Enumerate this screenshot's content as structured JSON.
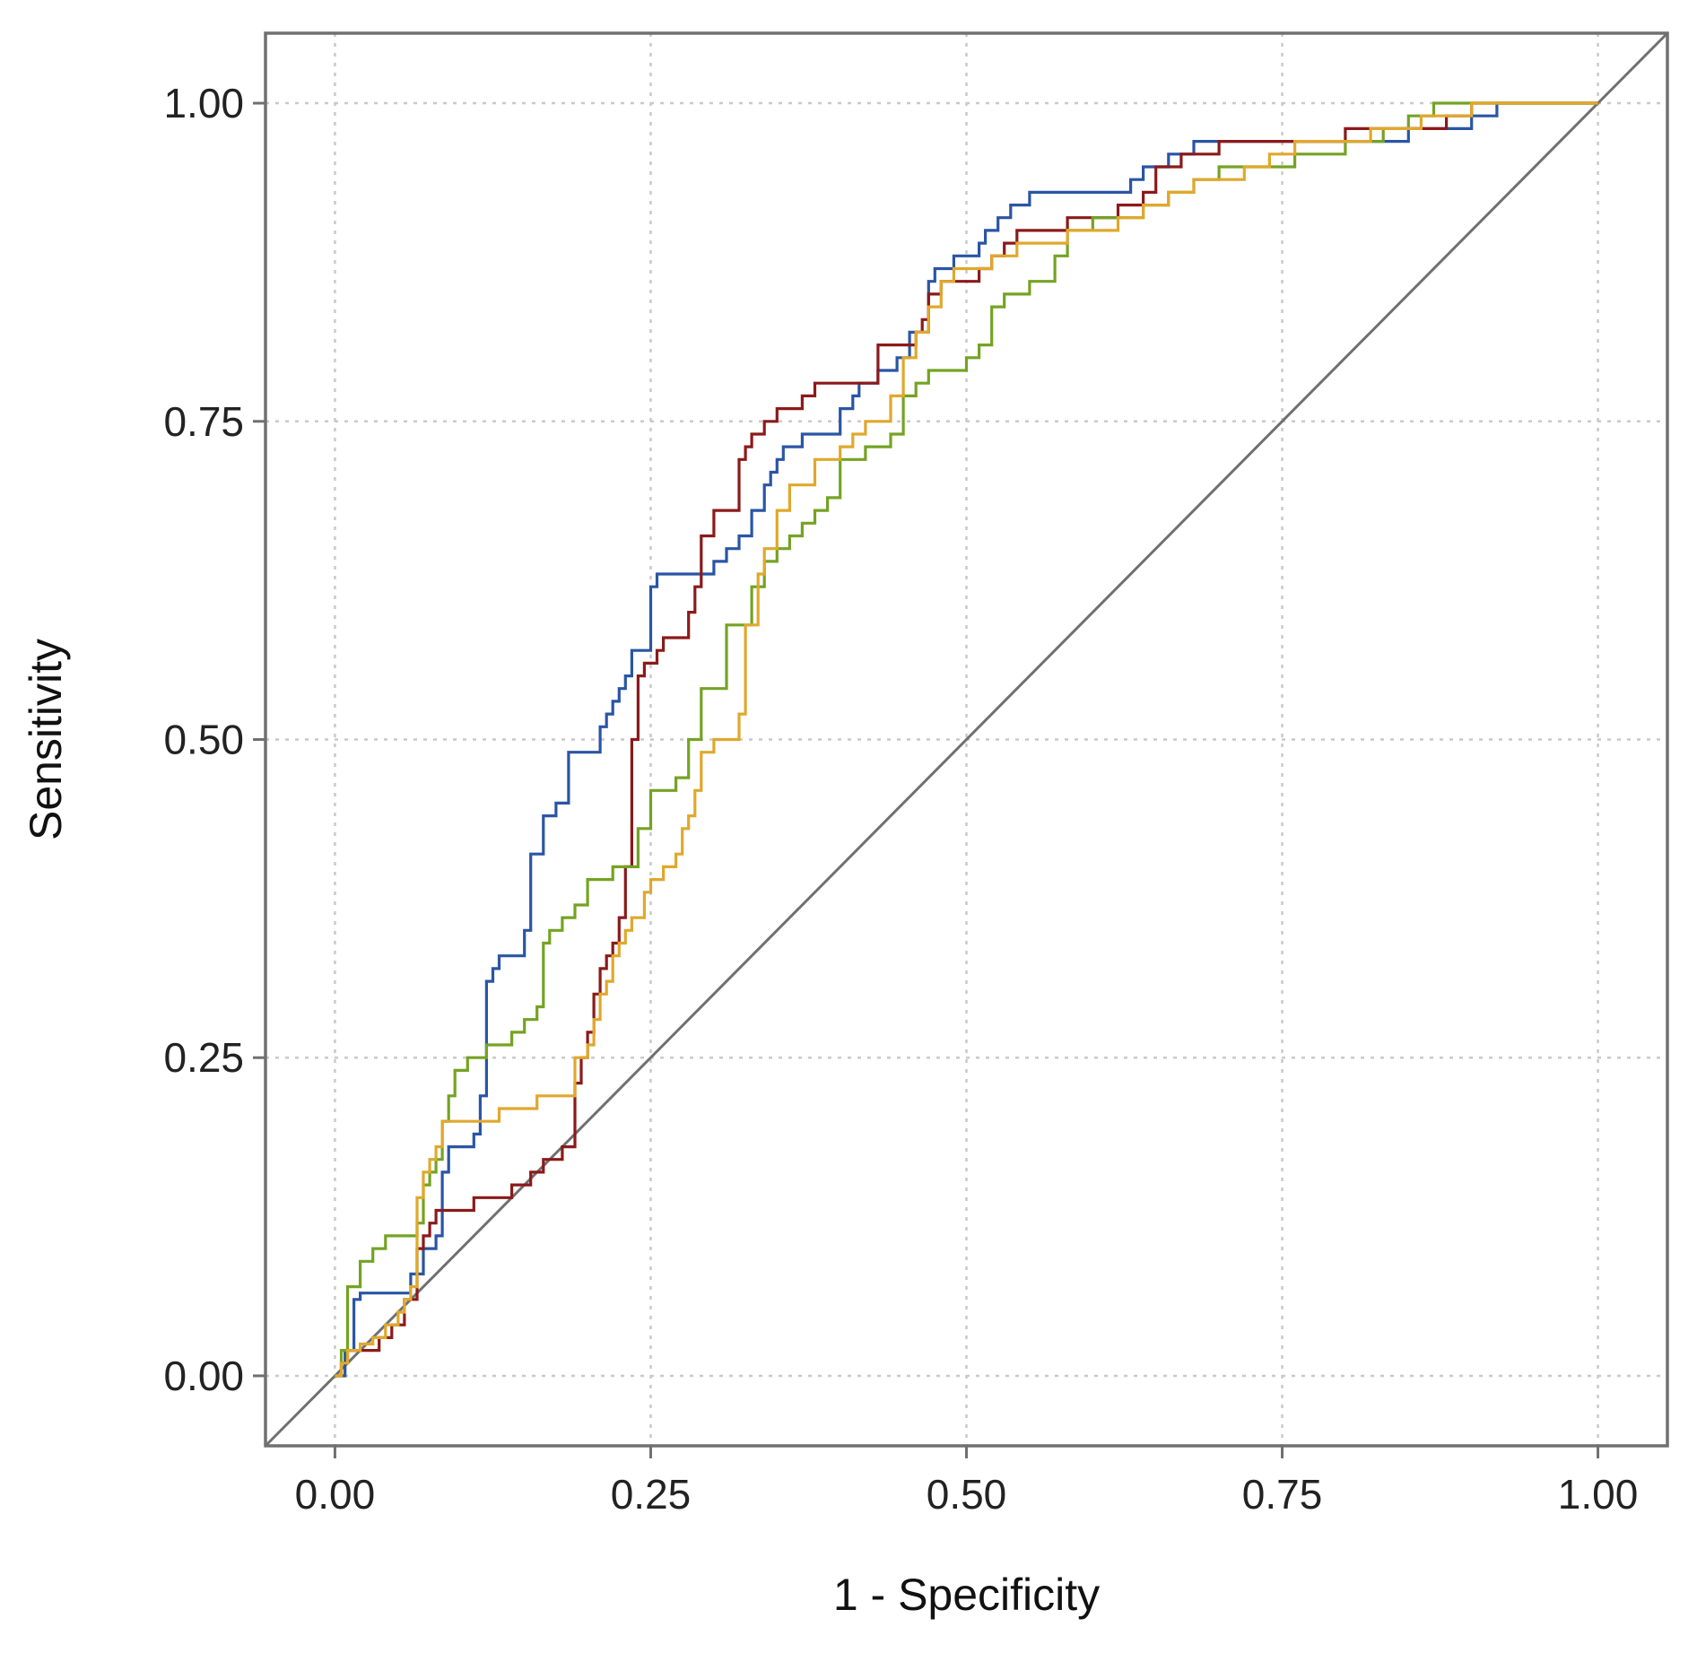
{
  "chart_data": {
    "type": "line",
    "title": "",
    "xlabel": "1 - Specificity",
    "ylabel": "Sensitivity",
    "xlim": [
      -0.055,
      1.055
    ],
    "ylim": [
      -0.055,
      1.055
    ],
    "x_ticks": [
      0,
      0.25,
      0.5,
      0.75,
      1
    ],
    "y_ticks": [
      0,
      0.25,
      0.5,
      0.75,
      1
    ],
    "x_tick_labels": [
      "0.00",
      "0.25",
      "0.50",
      "0.75",
      "1.00"
    ],
    "y_tick_labels": [
      "0.00",
      "0.25",
      "0.50",
      "0.75",
      "1.00"
    ],
    "grid": true,
    "reference_line": {
      "x": [
        -0.055,
        1.055
      ],
      "y": [
        -0.055,
        1.055
      ],
      "color": "#707070"
    },
    "series": [
      {
        "name": "blue",
        "color": "#2a55a5",
        "x": [
          0,
          0.008,
          0.015,
          0.02,
          0.03,
          0.045,
          0.055,
          0.06,
          0.065,
          0.07,
          0.08,
          0.085,
          0.09,
          0.1,
          0.11,
          0.115,
          0.12,
          0.125,
          0.13,
          0.135,
          0.14,
          0.15,
          0.155,
          0.16,
          0.165,
          0.17,
          0.175,
          0.18,
          0.185,
          0.19,
          0.2,
          0.205,
          0.21,
          0.215,
          0.22,
          0.225,
          0.23,
          0.235,
          0.24,
          0.245,
          0.25,
          0.255,
          0.27,
          0.29,
          0.3,
          0.31,
          0.315,
          0.32,
          0.33,
          0.335,
          0.34,
          0.345,
          0.35,
          0.355,
          0.36,
          0.37,
          0.38,
          0.39,
          0.4,
          0.41,
          0.415,
          0.42,
          0.43,
          0.44,
          0.445,
          0.45,
          0.455,
          0.46,
          0.465,
          0.47,
          0.475,
          0.48,
          0.49,
          0.5,
          0.51,
          0.515,
          0.52,
          0.525,
          0.53,
          0.535,
          0.54,
          0.55,
          0.56,
          0.57,
          0.58,
          0.6,
          0.62,
          0.63,
          0.64,
          0.65,
          0.66,
          0.67,
          0.68,
          0.7,
          0.72,
          0.74,
          0.76,
          0.8,
          0.85,
          0.9,
          0.92,
          0.95,
          1.0
        ],
        "y": [
          0,
          0.02,
          0.06,
          0.065,
          0.065,
          0.065,
          0.065,
          0.08,
          0.08,
          0.1,
          0.11,
          0.16,
          0.18,
          0.18,
          0.19,
          0.22,
          0.31,
          0.32,
          0.33,
          0.33,
          0.33,
          0.35,
          0.41,
          0.41,
          0.44,
          0.44,
          0.45,
          0.45,
          0.49,
          0.49,
          0.49,
          0.49,
          0.51,
          0.52,
          0.53,
          0.54,
          0.55,
          0.57,
          0.57,
          0.57,
          0.62,
          0.63,
          0.63,
          0.63,
          0.64,
          0.65,
          0.65,
          0.66,
          0.68,
          0.68,
          0.7,
          0.71,
          0.72,
          0.73,
          0.73,
          0.74,
          0.74,
          0.74,
          0.76,
          0.77,
          0.78,
          0.78,
          0.79,
          0.79,
          0.8,
          0.8,
          0.82,
          0.82,
          0.82,
          0.86,
          0.87,
          0.87,
          0.88,
          0.88,
          0.89,
          0.9,
          0.9,
          0.91,
          0.91,
          0.92,
          0.92,
          0.93,
          0.93,
          0.93,
          0.93,
          0.93,
          0.93,
          0.94,
          0.95,
          0.95,
          0.96,
          0.96,
          0.97,
          0.97,
          0.97,
          0.97,
          0.97,
          0.97,
          0.98,
          0.99,
          1.0,
          1.0,
          1.0
        ]
      },
      {
        "name": "dark-red",
        "color": "#8b1a1a",
        "x": [
          0,
          0.005,
          0.01,
          0.02,
          0.035,
          0.045,
          0.055,
          0.065,
          0.07,
          0.075,
          0.08,
          0.085,
          0.09,
          0.11,
          0.12,
          0.13,
          0.14,
          0.145,
          0.155,
          0.165,
          0.175,
          0.18,
          0.19,
          0.195,
          0.2,
          0.205,
          0.21,
          0.215,
          0.22,
          0.225,
          0.23,
          0.235,
          0.24,
          0.245,
          0.25,
          0.255,
          0.26,
          0.27,
          0.28,
          0.285,
          0.29,
          0.3,
          0.31,
          0.32,
          0.325,
          0.33,
          0.335,
          0.34,
          0.345,
          0.35,
          0.36,
          0.37,
          0.38,
          0.39,
          0.4,
          0.41,
          0.42,
          0.43,
          0.44,
          0.45,
          0.46,
          0.465,
          0.47,
          0.475,
          0.48,
          0.49,
          0.5,
          0.51,
          0.52,
          0.53,
          0.54,
          0.55,
          0.56,
          0.57,
          0.58,
          0.59,
          0.6,
          0.62,
          0.63,
          0.64,
          0.65,
          0.66,
          0.67,
          0.68,
          0.7,
          0.72,
          0.74,
          0.75,
          0.76,
          0.79,
          0.8,
          0.82,
          0.85,
          0.88,
          0.9,
          0.92,
          1.0
        ],
        "y": [
          0,
          0.01,
          0.02,
          0.02,
          0.03,
          0.04,
          0.06,
          0.1,
          0.11,
          0.12,
          0.13,
          0.13,
          0.13,
          0.14,
          0.14,
          0.14,
          0.15,
          0.15,
          0.16,
          0.17,
          0.17,
          0.18,
          0.23,
          0.25,
          0.27,
          0.3,
          0.32,
          0.33,
          0.34,
          0.36,
          0.4,
          0.5,
          0.55,
          0.56,
          0.56,
          0.57,
          0.58,
          0.58,
          0.6,
          0.62,
          0.66,
          0.68,
          0.68,
          0.72,
          0.73,
          0.74,
          0.74,
          0.75,
          0.75,
          0.76,
          0.76,
          0.77,
          0.78,
          0.78,
          0.78,
          0.78,
          0.78,
          0.81,
          0.81,
          0.81,
          0.82,
          0.83,
          0.85,
          0.85,
          0.86,
          0.86,
          0.86,
          0.87,
          0.88,
          0.89,
          0.9,
          0.9,
          0.9,
          0.9,
          0.91,
          0.91,
          0.91,
          0.92,
          0.92,
          0.93,
          0.95,
          0.95,
          0.96,
          0.96,
          0.97,
          0.97,
          0.97,
          0.97,
          0.97,
          0.97,
          0.98,
          0.98,
          0.98,
          0.99,
          1.0,
          1.0,
          1.0
        ]
      },
      {
        "name": "green",
        "color": "#74a323",
        "x": [
          0,
          0.005,
          0.01,
          0.02,
          0.03,
          0.035,
          0.04,
          0.05,
          0.06,
          0.065,
          0.07,
          0.075,
          0.08,
          0.085,
          0.09,
          0.095,
          0.1,
          0.105,
          0.11,
          0.12,
          0.13,
          0.14,
          0.15,
          0.16,
          0.165,
          0.17,
          0.18,
          0.19,
          0.2,
          0.21,
          0.22,
          0.23,
          0.24,
          0.245,
          0.25,
          0.26,
          0.27,
          0.275,
          0.28,
          0.285,
          0.29,
          0.3,
          0.305,
          0.31,
          0.32,
          0.33,
          0.34,
          0.35,
          0.36,
          0.37,
          0.38,
          0.39,
          0.4,
          0.41,
          0.42,
          0.44,
          0.45,
          0.46,
          0.47,
          0.48,
          0.49,
          0.5,
          0.51,
          0.52,
          0.53,
          0.55,
          0.57,
          0.58,
          0.6,
          0.62,
          0.64,
          0.66,
          0.68,
          0.7,
          0.72,
          0.74,
          0.76,
          0.8,
          0.83,
          0.85,
          0.87,
          0.9,
          1.0
        ],
        "y": [
          0,
          0.02,
          0.07,
          0.09,
          0.1,
          0.1,
          0.11,
          0.11,
          0.11,
          0.12,
          0.15,
          0.16,
          0.17,
          0.2,
          0.22,
          0.24,
          0.24,
          0.25,
          0.25,
          0.26,
          0.26,
          0.27,
          0.28,
          0.29,
          0.34,
          0.35,
          0.36,
          0.37,
          0.39,
          0.39,
          0.4,
          0.4,
          0.43,
          0.43,
          0.46,
          0.46,
          0.47,
          0.47,
          0.5,
          0.5,
          0.54,
          0.54,
          0.54,
          0.59,
          0.59,
          0.62,
          0.64,
          0.65,
          0.66,
          0.67,
          0.68,
          0.69,
          0.72,
          0.72,
          0.73,
          0.74,
          0.77,
          0.78,
          0.79,
          0.79,
          0.79,
          0.8,
          0.81,
          0.84,
          0.85,
          0.86,
          0.88,
          0.9,
          0.91,
          0.91,
          0.92,
          0.93,
          0.94,
          0.95,
          0.95,
          0.95,
          0.96,
          0.97,
          0.98,
          0.99,
          1.0,
          1.0,
          1.0
        ]
      },
      {
        "name": "gold",
        "color": "#e0a82c",
        "x": [
          0,
          0.005,
          0.01,
          0.015,
          0.02,
          0.03,
          0.04,
          0.05,
          0.055,
          0.06,
          0.065,
          0.07,
          0.075,
          0.08,
          0.085,
          0.09,
          0.1,
          0.11,
          0.12,
          0.13,
          0.14,
          0.15,
          0.16,
          0.17,
          0.18,
          0.19,
          0.2,
          0.205,
          0.21,
          0.215,
          0.22,
          0.225,
          0.23,
          0.235,
          0.24,
          0.245,
          0.25,
          0.26,
          0.27,
          0.275,
          0.28,
          0.285,
          0.29,
          0.3,
          0.31,
          0.32,
          0.325,
          0.33,
          0.335,
          0.34,
          0.345,
          0.35,
          0.36,
          0.37,
          0.38,
          0.39,
          0.4,
          0.41,
          0.42,
          0.43,
          0.44,
          0.45,
          0.46,
          0.47,
          0.48,
          0.49,
          0.5,
          0.52,
          0.54,
          0.56,
          0.58,
          0.6,
          0.62,
          0.64,
          0.66,
          0.68,
          0.7,
          0.72,
          0.74,
          0.76,
          0.8,
          0.82,
          0.84,
          0.86,
          0.88,
          0.9,
          1.0
        ],
        "y": [
          0,
          0.01,
          0.02,
          0.02,
          0.025,
          0.03,
          0.04,
          0.05,
          0.06,
          0.07,
          0.14,
          0.16,
          0.17,
          0.18,
          0.2,
          0.2,
          0.2,
          0.2,
          0.2,
          0.21,
          0.21,
          0.21,
          0.22,
          0.22,
          0.22,
          0.25,
          0.26,
          0.28,
          0.3,
          0.31,
          0.33,
          0.34,
          0.35,
          0.36,
          0.36,
          0.38,
          0.39,
          0.4,
          0.41,
          0.43,
          0.44,
          0.46,
          0.49,
          0.5,
          0.5,
          0.52,
          0.59,
          0.59,
          0.63,
          0.65,
          0.65,
          0.68,
          0.7,
          0.7,
          0.72,
          0.72,
          0.73,
          0.74,
          0.75,
          0.75,
          0.77,
          0.8,
          0.82,
          0.84,
          0.86,
          0.87,
          0.87,
          0.88,
          0.89,
          0.89,
          0.9,
          0.9,
          0.91,
          0.92,
          0.93,
          0.94,
          0.94,
          0.95,
          0.96,
          0.97,
          0.97,
          0.98,
          0.98,
          0.99,
          0.99,
          1.0,
          1.0
        ]
      }
    ]
  }
}
